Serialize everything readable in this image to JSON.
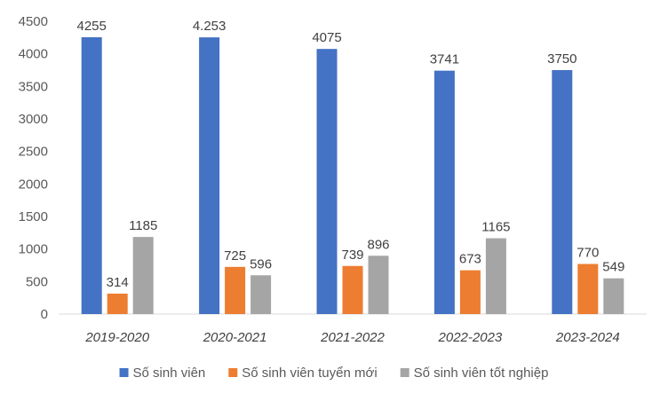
{
  "chart_data": {
    "type": "bar",
    "title": "",
    "xlabel": "",
    "ylabel": "",
    "ylim": [
      0,
      4500
    ],
    "yticks": [
      0,
      500,
      1000,
      1500,
      2000,
      2500,
      3000,
      3500,
      4000,
      4500
    ],
    "categories": [
      "2019-2020",
      "2020-2021",
      "2021-2022",
      "2022-2023",
      "2023-2024"
    ],
    "series": [
      {
        "name": "Số sinh viên",
        "color": "#4472C4",
        "values": [
          4255,
          4253,
          4075,
          3741,
          3750
        ],
        "data_labels": [
          "4255",
          "4.253",
          "4075",
          "3741",
          "3750"
        ]
      },
      {
        "name": "Số sinh viên tuyển mới",
        "color": "#ED7D31",
        "values": [
          314,
          725,
          739,
          673,
          770
        ],
        "data_labels": [
          "314",
          "725",
          "739",
          "673",
          "770"
        ]
      },
      {
        "name": "Số sinh viên tốt nghiệp",
        "color": "#A5A5A5",
        "values": [
          1185,
          596,
          896,
          1165,
          549
        ],
        "data_labels": [
          "1185",
          "596",
          "896",
          "1165",
          "549"
        ]
      }
    ],
    "grid": false,
    "legend_position": "bottom"
  }
}
